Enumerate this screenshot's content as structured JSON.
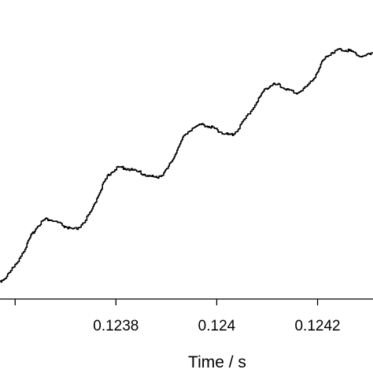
{
  "chart_data": {
    "type": "line",
    "title": "",
    "xlabel": "Time / s",
    "ylabel": "",
    "xlim": [
      0.12357,
      0.12431
    ],
    "ylim": [
      0,
      1
    ],
    "grid": false,
    "legend": "none",
    "x_ticks": [
      {
        "value": 0.1236,
        "label": ""
      },
      {
        "value": 0.1238,
        "label": "0.1238"
      },
      {
        "value": 0.124,
        "label": "0.124"
      },
      {
        "value": 0.1242,
        "label": "0.1242"
      }
    ],
    "line_color": "#000000",
    "series": [
      {
        "x": [
          0.12357,
          0.12359,
          0.12362,
          0.12364,
          0.12366,
          0.12368,
          0.1237,
          0.12372,
          0.12375,
          0.12377,
          0.12379,
          0.12381,
          0.12383,
          0.12386,
          0.12388,
          0.1239,
          0.12392,
          0.12394,
          0.12397,
          0.12399,
          0.12401,
          0.12403,
          0.12405,
          0.12408,
          0.1241,
          0.12412,
          0.12414,
          0.12416,
          0.12419,
          0.12421,
          0.12423,
          0.12425,
          0.12427,
          0.12429,
          0.12431
        ],
        "values": [
          0.05,
          0.09,
          0.19,
          0.27,
          0.31,
          0.3,
          0.28,
          0.27,
          0.34,
          0.44,
          0.51,
          0.53,
          0.52,
          0.5,
          0.49,
          0.52,
          0.6,
          0.68,
          0.71,
          0.7,
          0.68,
          0.67,
          0.72,
          0.81,
          0.87,
          0.88,
          0.86,
          0.85,
          0.9,
          0.98,
          1.02,
          1.03,
          1.02,
          1.0,
          1.02
        ]
      }
    ]
  }
}
